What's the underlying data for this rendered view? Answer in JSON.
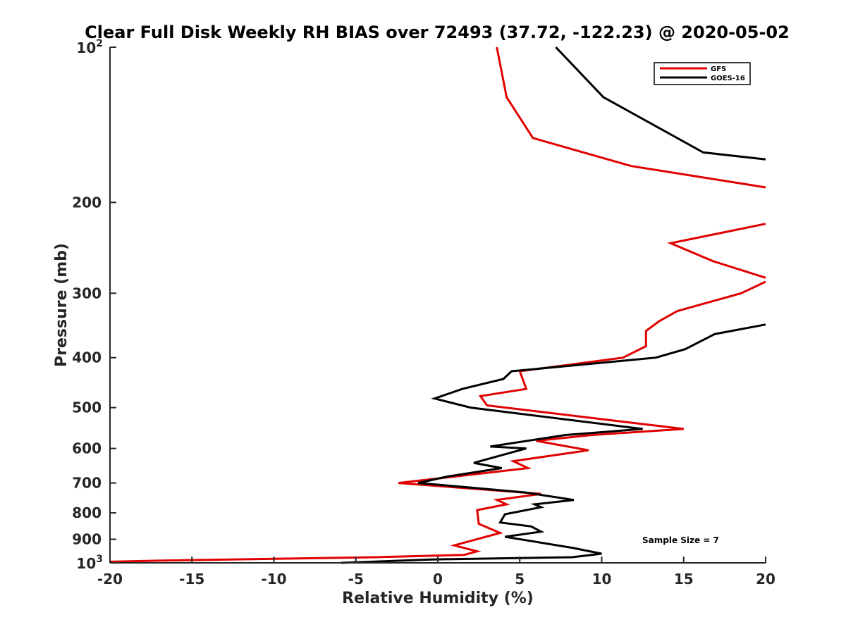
{
  "chart_data": {
    "type": "line",
    "title": "Clear Full Disk Weekly RH BIAS over 72493 (37.72, -122.23) @ 2020-05-02",
    "xlabel": "Relative Humidity (%)",
    "ylabel": "Pressure (mb)",
    "xlim": [
      -20,
      20
    ],
    "ylim": [
      100,
      1000
    ],
    "y_scale": "log",
    "y_reversed": true,
    "grid": false,
    "legend_position": "top-right",
    "x_ticks": [
      "-20",
      "-15",
      "-10",
      "-5",
      "0",
      "5",
      "10",
      "15",
      "20"
    ],
    "x_tick_values": [
      -20,
      -15,
      -10,
      -5,
      0,
      5,
      10,
      15,
      20
    ],
    "y_ticks": [
      {
        "value": 100,
        "base": "10",
        "exp": "2"
      },
      {
        "value": 200,
        "label": "200"
      },
      {
        "value": 300,
        "label": "300"
      },
      {
        "value": 400,
        "label": "400"
      },
      {
        "value": 500,
        "label": "500"
      },
      {
        "value": 600,
        "label": "600"
      },
      {
        "value": 700,
        "label": "700"
      },
      {
        "value": 800,
        "label": "800"
      },
      {
        "value": 900,
        "label": "900"
      },
      {
        "value": 1000,
        "base": "10",
        "exp": "3"
      }
    ],
    "annotation": "Sample Size = 7",
    "series": [
      {
        "name": "GFS",
        "color": "#e00000",
        "points": [
          [
            3.6,
            100
          ],
          [
            4.2,
            125
          ],
          [
            5.8,
            150
          ],
          [
            11.8,
            170
          ],
          [
            20.0,
            187
          ],
          null,
          [
            20.0,
            220
          ],
          [
            14.2,
            240
          ],
          [
            16.8,
            260
          ],
          [
            20.0,
            280
          ],
          null,
          [
            20.0,
            285
          ],
          [
            18.5,
            300
          ],
          [
            14.6,
            325
          ],
          [
            13.5,
            340
          ],
          [
            12.7,
            355
          ],
          [
            12.7,
            380
          ],
          [
            11.3,
            400
          ],
          [
            5.0,
            425
          ],
          [
            5.4,
            460
          ],
          [
            2.6,
            475
          ],
          [
            3.0,
            495
          ],
          [
            15.0,
            550
          ],
          [
            9.4,
            565
          ],
          [
            6.0,
            580
          ],
          [
            9.2,
            605
          ],
          [
            4.6,
            635
          ],
          [
            5.5,
            655
          ],
          [
            -2.4,
            700
          ],
          [
            6.3,
            735
          ],
          [
            3.6,
            755
          ],
          [
            4.2,
            770
          ],
          [
            2.4,
            790
          ],
          [
            2.5,
            840
          ],
          [
            3.8,
            875
          ],
          [
            1.0,
            925
          ],
          [
            2.4,
            950
          ],
          [
            1.6,
            965
          ],
          [
            -3.8,
            975
          ],
          [
            -16.8,
            990
          ],
          [
            -20.0,
            995
          ]
        ]
      },
      {
        "name": "GOES-16",
        "color": "#000000",
        "points": [
          [
            7.2,
            100
          ],
          [
            10.1,
            125
          ],
          [
            16.2,
            160
          ],
          [
            20.0,
            165
          ],
          null,
          [
            20.0,
            345
          ],
          [
            16.9,
            360
          ],
          [
            15.1,
            385
          ],
          [
            13.3,
            400
          ],
          [
            4.5,
            425
          ],
          [
            4.0,
            440
          ],
          [
            1.5,
            460
          ],
          [
            -0.2,
            480
          ],
          [
            2.0,
            500
          ],
          [
            12.5,
            550
          ],
          [
            7.8,
            565
          ],
          [
            3.2,
            595
          ],
          [
            5.4,
            600
          ],
          [
            2.2,
            640
          ],
          [
            3.9,
            655
          ],
          [
            0.6,
            680
          ],
          [
            -1.2,
            700
          ],
          [
            5.3,
            730
          ],
          [
            8.3,
            755
          ],
          [
            5.9,
            770
          ],
          [
            6.3,
            780
          ],
          [
            4.1,
            805
          ],
          [
            3.8,
            835
          ],
          [
            5.7,
            850
          ],
          [
            6.3,
            870
          ],
          [
            4.1,
            890
          ],
          [
            8.2,
            935
          ],
          [
            10.0,
            960
          ],
          [
            8.2,
            975
          ],
          [
            -0.4,
            985
          ],
          [
            -5.9,
            1000
          ]
        ]
      }
    ]
  }
}
